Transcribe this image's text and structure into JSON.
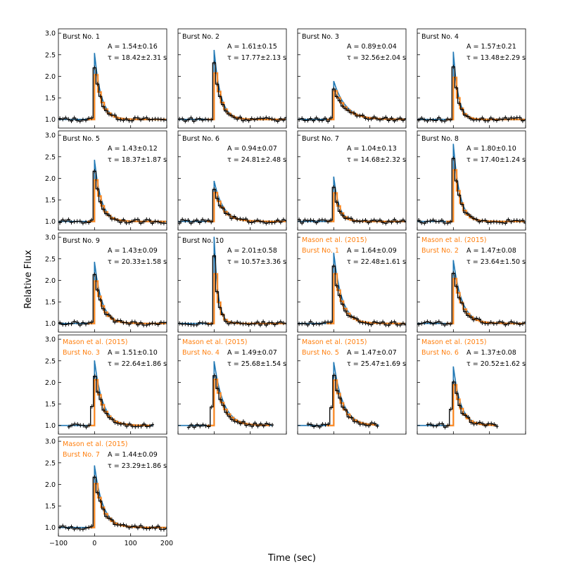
{
  "figure": {
    "ylabel": "Relative Flux",
    "xlabel": "Time (sec)",
    "xticks": [
      "−100",
      "0",
      "100",
      "200"
    ],
    "yticks": [
      "1.0",
      "1.5",
      "2.0",
      "2.5",
      "3.0"
    ]
  },
  "colors": {
    "data": "#000000",
    "model": "#1f77b4",
    "mason": "#ff7f0e",
    "samples": "#f5a35a"
  },
  "chart_data": {
    "type": "line",
    "xlim": [
      -100,
      200
    ],
    "ylim": [
      0.8,
      3.1
    ],
    "panels": [
      {
        "label": "Burst No. 1",
        "A": "A = 1.54±0.16",
        "tau": "τ = 18.42±2.31 s",
        "a": 1.54,
        "t": 18.42,
        "mason": false,
        "xend": 200
      },
      {
        "label": "Burst No. 2",
        "A": "A = 1.61±0.15",
        "tau": "τ = 17.77±2.13 s",
        "a": 1.61,
        "t": 17.77,
        "mason": false,
        "xend": 200
      },
      {
        "label": "Burst No. 3",
        "A": "A = 0.89±0.04",
        "tau": "τ = 32.56±2.04 s",
        "a": 0.89,
        "t": 32.56,
        "mason": false,
        "xend": 200
      },
      {
        "label": "Burst No. 4",
        "A": "A = 1.57±0.21",
        "tau": "τ = 13.48±2.29 s",
        "a": 1.57,
        "t": 13.48,
        "mason": false,
        "xend": 200
      },
      {
        "label": "Burst No. 5",
        "A": "A = 1.43±0.12",
        "tau": "τ = 18.37±1.87 s",
        "a": 1.43,
        "t": 18.37,
        "mason": false,
        "xend": 200
      },
      {
        "label": "Burst No. 6",
        "A": "A = 0.94±0.07",
        "tau": "τ = 24.81±2.48 s",
        "a": 0.94,
        "t": 24.81,
        "mason": false,
        "xend": 200
      },
      {
        "label": "Burst No. 7",
        "A": "A = 1.04±0.13",
        "tau": "τ = 14.68±2.32 s",
        "a": 1.04,
        "t": 14.68,
        "mason": false,
        "xend": 200
      },
      {
        "label": "Burst No. 8",
        "A": "A = 1.80±0.10",
        "tau": "τ = 17.40±1.24 s",
        "a": 1.8,
        "t": 17.4,
        "mason": false,
        "xend": 200
      },
      {
        "label": "Burst No. 9",
        "A": "A = 1.43±0.09",
        "tau": "τ = 20.33±1.58 s",
        "a": 1.43,
        "t": 20.33,
        "mason": false,
        "xend": 200
      },
      {
        "label": "Burst No. 10",
        "A": "A = 2.01±0.58",
        "tau": "τ = 10.57±3.36 s",
        "a": 2.01,
        "t": 10.57,
        "mason": false,
        "xend": 200
      },
      {
        "label": "Burst No. 1",
        "A": "A = 1.64±0.09",
        "tau": "τ = 22.48±1.61 s",
        "a": 1.64,
        "t": 22.48,
        "mason": true,
        "xend": 200
      },
      {
        "label": "Burst No. 2",
        "A": "A = 1.47±0.08",
        "tau": "τ = 23.64±1.50 s",
        "a": 1.47,
        "t": 23.64,
        "mason": true,
        "xend": 200
      },
      {
        "label": "Burst No. 3",
        "A": "A = 1.51±0.10",
        "tau": "τ = 22.64±1.86 s",
        "a": 1.51,
        "t": 22.64,
        "mason": true,
        "xend": 160
      },
      {
        "label": "Burst No. 4",
        "A": "A = 1.49±0.07",
        "tau": "τ = 25.68±1.54 s",
        "a": 1.49,
        "t": 25.68,
        "mason": true,
        "xend": 160
      },
      {
        "label": "Burst No. 5",
        "A": "A = 1.47±0.07",
        "tau": "τ = 25.47±1.69 s",
        "a": 1.47,
        "t": 25.47,
        "mason": true,
        "xend": 125
      },
      {
        "label": "Burst No. 6",
        "A": "A = 1.37±0.08",
        "tau": "τ = 20.52±1.62 s",
        "a": 1.37,
        "t": 20.52,
        "mason": true,
        "xend": 120
      },
      {
        "label": "Burst No. 7",
        "A": "A = 1.44±0.09",
        "tau": "τ = 23.29±1.86 s",
        "a": 1.44,
        "t": 23.29,
        "mason": true,
        "xend": 200
      }
    ],
    "mason_label": "Mason et al. (2015)"
  }
}
